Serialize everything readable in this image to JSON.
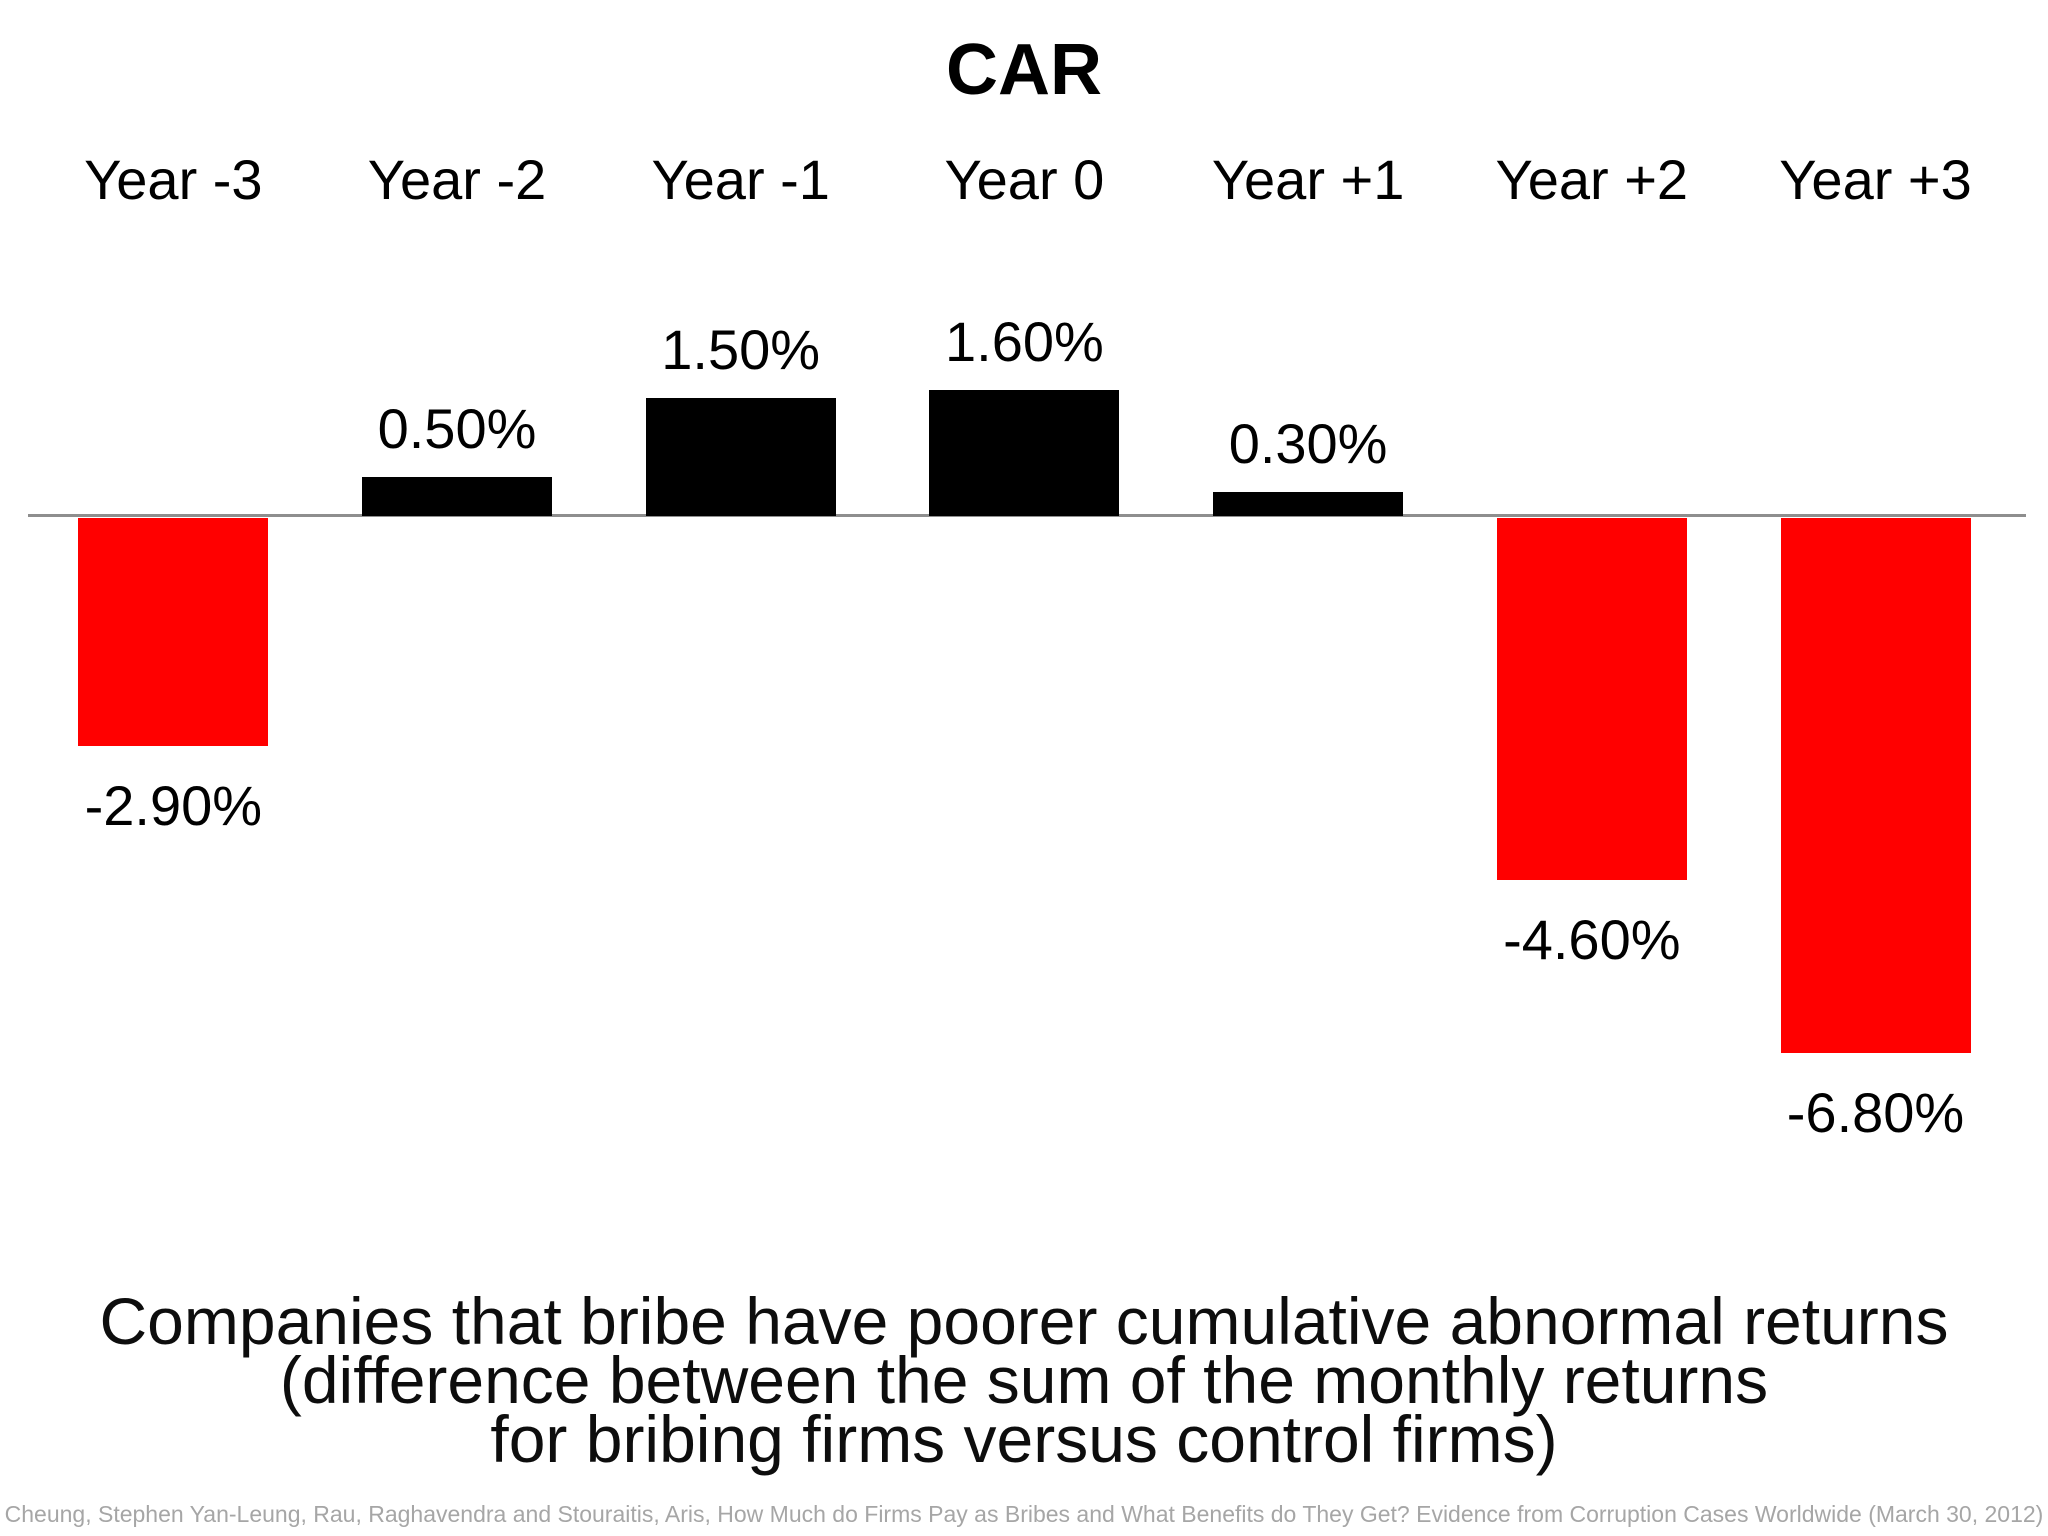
{
  "chart_data": {
    "type": "bar",
    "title": "CAR",
    "categories": [
      "Year -3",
      "Year -2",
      "Year -1",
      "Year 0",
      "Year +1",
      "Year +2",
      "Year +3"
    ],
    "values": [
      -2.9,
      0.5,
      1.5,
      1.6,
      0.3,
      -4.6,
      -6.8
    ],
    "data_labels": [
      "-2.90%",
      "0.50%",
      "1.50%",
      "1.60%",
      "0.30%",
      "-4.60%",
      "-6.80%"
    ],
    "xlabel": "",
    "ylabel": "",
    "ylim": [
      -7.5,
      2.5
    ],
    "grid": false,
    "legend_position": "none",
    "positive_bar_color": "#000000",
    "negative_bar_color": "#ff0000",
    "axis_line_color": "#8e8e8e"
  },
  "caption": {
    "line1": "Companies that bribe have poorer cumulative abnormal returns",
    "line2": "(difference between the sum of the monthly returns",
    "line3": "for bribing firms versus control firms)"
  },
  "citation": "Cheung, Stephen Yan-Leung, Rau, Raghavendra and Stouraitis, Aris, How Much do Firms Pay as Bribes and What Benefits do They Get? Evidence from Corruption Cases Worldwide (March 30, 2012)"
}
